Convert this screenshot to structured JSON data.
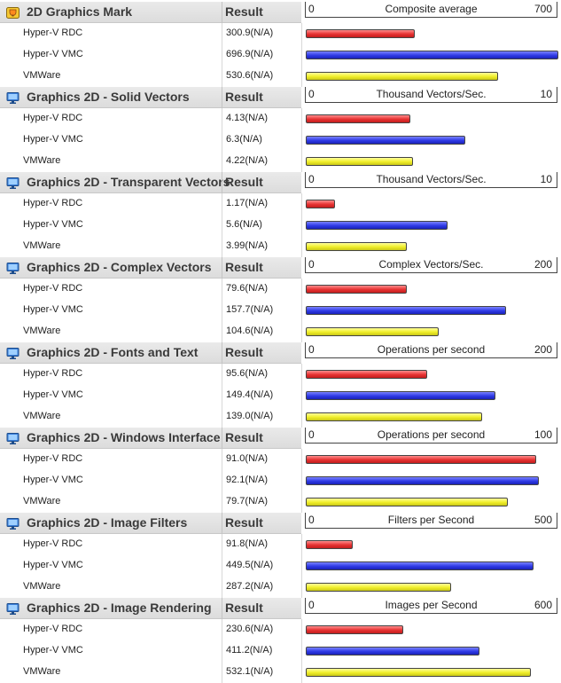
{
  "colors": {
    "red": "#e63232",
    "blue": "#2f3ae6",
    "yellow": "#f0ee28"
  },
  "chart_data": [
    {
      "type": "bar",
      "title": "2D Graphics Mark",
      "column": "Result",
      "icon": "trophy-icon",
      "xlabel": "Composite average",
      "xlim": [
        0,
        700
      ],
      "axis_min_label": "0",
      "axis_max_label": "700",
      "categories": [
        "Hyper-V RDC",
        "Hyper-V VMC",
        "VMWare"
      ],
      "values": [
        300.9,
        696.9,
        530.6
      ],
      "value_labels": [
        "300.9(N/A)",
        "696.9(N/A)",
        "530.6(N/A)"
      ]
    },
    {
      "type": "bar",
      "title": "Graphics 2D - Solid Vectors",
      "column": "Result",
      "icon": "monitor-icon",
      "xlabel": "Thousand Vectors/Sec.",
      "xlim": [
        0,
        10
      ],
      "axis_min_label": "0",
      "axis_max_label": "10",
      "categories": [
        "Hyper-V RDC",
        "Hyper-V VMC",
        "VMWare"
      ],
      "values": [
        4.13,
        6.3,
        4.22
      ],
      "value_labels": [
        "4.13(N/A)",
        "6.3(N/A)",
        "4.22(N/A)"
      ]
    },
    {
      "type": "bar",
      "title": "Graphics 2D - Transparent Vectors",
      "column": "Result",
      "icon": "monitor-icon",
      "xlabel": "Thousand Vectors/Sec.",
      "xlim": [
        0,
        10
      ],
      "axis_min_label": "0",
      "axis_max_label": "10",
      "categories": [
        "Hyper-V RDC",
        "Hyper-V VMC",
        "VMWare"
      ],
      "values": [
        1.17,
        5.6,
        3.99
      ],
      "value_labels": [
        "1.17(N/A)",
        "5.6(N/A)",
        "3.99(N/A)"
      ]
    },
    {
      "type": "bar",
      "title": "Graphics 2D - Complex Vectors",
      "column": "Result",
      "icon": "monitor-icon",
      "xlabel": "Complex Vectors/Sec.",
      "xlim": [
        0,
        200
      ],
      "axis_min_label": "0",
      "axis_max_label": "200",
      "categories": [
        "Hyper-V RDC",
        "Hyper-V VMC",
        "VMWare"
      ],
      "values": [
        79.6,
        157.7,
        104.6
      ],
      "value_labels": [
        "79.6(N/A)",
        "157.7(N/A)",
        "104.6(N/A)"
      ]
    },
    {
      "type": "bar",
      "title": "Graphics 2D - Fonts and Text",
      "column": "Result",
      "icon": "monitor-icon",
      "xlabel": "Operations per second",
      "xlim": [
        0,
        200
      ],
      "axis_min_label": "0",
      "axis_max_label": "200",
      "categories": [
        "Hyper-V RDC",
        "Hyper-V VMC",
        "VMWare"
      ],
      "values": [
        95.6,
        149.4,
        139.0
      ],
      "value_labels": [
        "95.6(N/A)",
        "149.4(N/A)",
        "139.0(N/A)"
      ]
    },
    {
      "type": "bar",
      "title": "Graphics 2D - Windows Interface",
      "column": "Result",
      "icon": "monitor-icon",
      "xlabel": "Operations per second",
      "xlim": [
        0,
        100
      ],
      "axis_min_label": "0",
      "axis_max_label": "100",
      "categories": [
        "Hyper-V RDC",
        "Hyper-V VMC",
        "VMWare"
      ],
      "values": [
        91.0,
        92.1,
        79.7
      ],
      "value_labels": [
        "91.0(N/A)",
        "92.1(N/A)",
        "79.7(N/A)"
      ]
    },
    {
      "type": "bar",
      "title": "Graphics 2D - Image Filters",
      "column": "Result",
      "icon": "monitor-icon",
      "xlabel": "Filters per Second",
      "xlim": [
        0,
        500
      ],
      "axis_min_label": "0",
      "axis_max_label": "500",
      "categories": [
        "Hyper-V RDC",
        "Hyper-V VMC",
        "VMWare"
      ],
      "values": [
        91.8,
        449.5,
        287.2
      ],
      "value_labels": [
        "91.8(N/A)",
        "449.5(N/A)",
        "287.2(N/A)"
      ]
    },
    {
      "type": "bar",
      "title": "Graphics 2D - Image Rendering",
      "column": "Result",
      "icon": "monitor-icon",
      "xlabel": "Images per Second",
      "xlim": [
        0,
        600
      ],
      "axis_min_label": "0",
      "axis_max_label": "600",
      "categories": [
        "Hyper-V RDC",
        "Hyper-V VMC",
        "VMWare"
      ],
      "values": [
        230.6,
        411.2,
        532.1
      ],
      "value_labels": [
        "230.6(N/A)",
        "411.2(N/A)",
        "532.1(N/A)"
      ]
    }
  ]
}
